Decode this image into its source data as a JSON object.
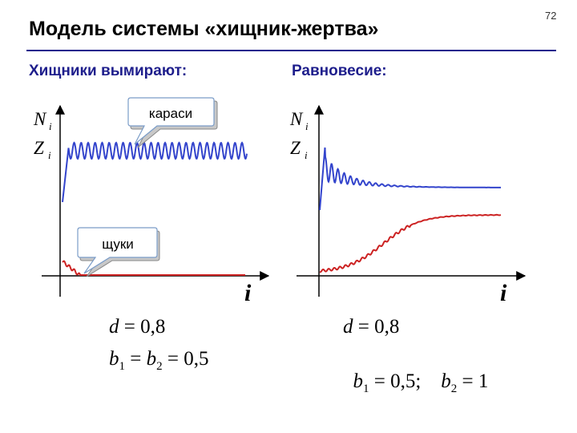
{
  "slide": {
    "title": "Модель системы «хищник-жертва»",
    "page_number": "72"
  },
  "left_panel": {
    "heading": "Хищники вымирают:",
    "y_label_N": "N",
    "y_label_Z": "Z",
    "subscript": "i",
    "x_label": "i",
    "callout_prey": "караси",
    "callout_predator": "щуки",
    "formula_d": {
      "var": "d",
      "rest": " = 0,8"
    },
    "formula_b": {
      "b": "b",
      "s1": "1",
      "mid": " = ",
      "s2": "2",
      "rest": " = 0,5"
    },
    "colors": {
      "prey": "#3344cc",
      "predator": "#cc2222"
    }
  },
  "right_panel": {
    "heading": "Равновесие:",
    "y_label_N": "N",
    "y_label_Z": "Z",
    "subscript": "i",
    "x_label": "i",
    "formula_d": {
      "var": "d",
      "rest": " = 0,8"
    },
    "formula_b": {
      "b": "b",
      "s1": "1",
      "mid": " = 0,5;    ",
      "s2": "2",
      "rest": " = 1"
    },
    "colors": {
      "prey": "#3344cc",
      "predator": "#cc2222"
    }
  }
}
